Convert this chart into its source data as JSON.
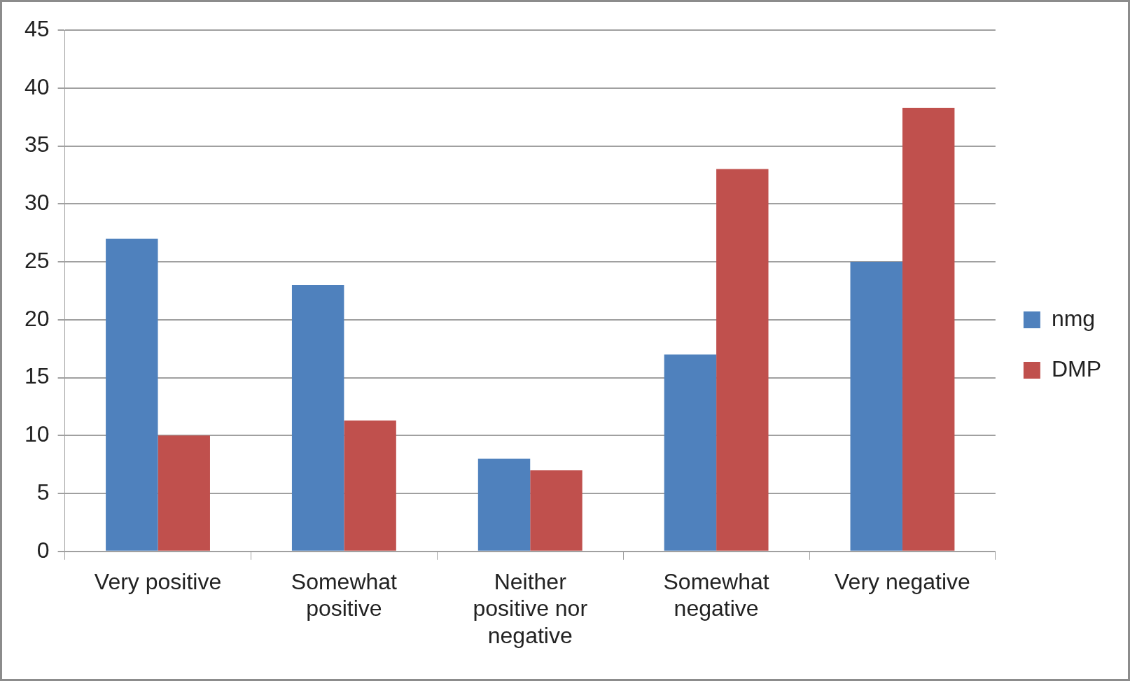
{
  "chart_data": {
    "type": "bar",
    "categories": [
      "Very positive",
      "Somewhat positive",
      "Neither positive nor negative",
      "Somewhat negative",
      "Very negative"
    ],
    "series": [
      {
        "name": "nmg",
        "color": "#4f81bd",
        "values": [
          27,
          23,
          8,
          17,
          25
        ]
      },
      {
        "name": "DMP",
        "color": "#c0504d",
        "values": [
          10,
          11.3,
          7,
          33,
          38.3
        ]
      }
    ],
    "ylim": [
      0,
      45
    ],
    "yticks": [
      0,
      5,
      10,
      15,
      20,
      25,
      30,
      35,
      40,
      45
    ],
    "grid": "y",
    "legend": "right"
  }
}
